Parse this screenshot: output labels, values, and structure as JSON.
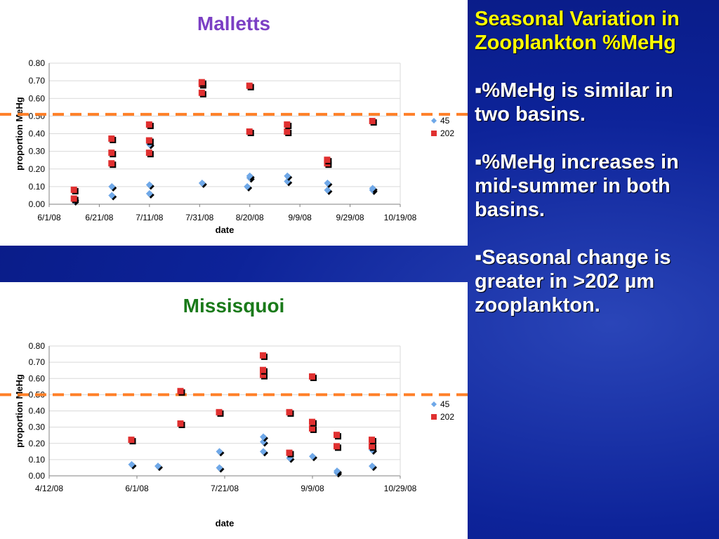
{
  "slide": {
    "heading": "Seasonal Variation in Zooplankton %MeHg",
    "bullets": [
      "▪%MeHg is similar in two basins.",
      "▪%MeHg increases in  mid-summer in both basins.",
      "▪Seasonal change is greater in >202 µm zooplankton."
    ],
    "colors": {
      "background": "#0d2399",
      "heading": "#ffff00",
      "text": "#ffffff"
    }
  },
  "chart_data": [
    {
      "type": "scatter",
      "title": "Malletts",
      "title_color": "#7b3fc4",
      "xlabel": "date",
      "ylabel": "proportion MeHg",
      "ylim": [
        0,
        0.8
      ],
      "xlim": [
        "2008-06-01",
        "2008-10-19"
      ],
      "x_ticks": [
        "6/1/08",
        "6/21/08",
        "7/11/08",
        "7/31/08",
        "8/20/08",
        "9/9/08",
        "9/29/08",
        "10/19/08"
      ],
      "y_ticks": [
        "0.00",
        "0.10",
        "0.20",
        "0.30",
        "0.40",
        "0.50",
        "0.60",
        "0.70",
        "0.80"
      ],
      "reference_line": {
        "y": 0.51,
        "color": "#ff7f27",
        "style": "dashed"
      },
      "legend": "right",
      "grid": true,
      "series": [
        {
          "name": "45",
          "color": "#6fa8e8",
          "marker": "diamond",
          "points": [
            [
              "2008-06-11",
              0.02
            ],
            [
              "2008-06-11",
              0.03
            ],
            [
              "2008-06-26",
              0.05
            ],
            [
              "2008-06-26",
              0.1
            ],
            [
              "2008-07-11",
              0.06
            ],
            [
              "2008-07-11",
              0.11
            ],
            [
              "2008-07-11",
              0.34
            ],
            [
              "2008-08-01",
              0.12
            ],
            [
              "2008-08-19",
              0.1
            ],
            [
              "2008-08-20",
              0.15
            ],
            [
              "2008-08-20",
              0.16
            ],
            [
              "2008-09-04",
              0.13
            ],
            [
              "2008-09-04",
              0.16
            ],
            [
              "2008-09-20",
              0.08
            ],
            [
              "2008-09-20",
              0.12
            ],
            [
              "2008-10-08",
              0.08
            ],
            [
              "2008-10-08",
              0.09
            ]
          ]
        },
        {
          "name": "202",
          "color": "#e03030",
          "marker": "square",
          "points": [
            [
              "2008-06-11",
              0.03
            ],
            [
              "2008-06-11",
              0.08
            ],
            [
              "2008-06-26",
              0.23
            ],
            [
              "2008-06-26",
              0.29
            ],
            [
              "2008-06-26",
              0.37
            ],
            [
              "2008-07-11",
              0.29
            ],
            [
              "2008-07-11",
              0.36
            ],
            [
              "2008-07-11",
              0.45
            ],
            [
              "2008-08-01",
              0.63
            ],
            [
              "2008-08-01",
              0.68
            ],
            [
              "2008-08-01",
              0.69
            ],
            [
              "2008-08-20",
              0.41
            ],
            [
              "2008-08-20",
              0.67
            ],
            [
              "2008-09-04",
              0.41
            ],
            [
              "2008-09-04",
              0.45
            ],
            [
              "2008-09-20",
              0.23
            ],
            [
              "2008-09-20",
              0.25
            ],
            [
              "2008-10-08",
              0.47
            ]
          ]
        }
      ]
    },
    {
      "type": "scatter",
      "title": "Missisquoi",
      "title_color": "#1a7a1a",
      "xlabel": "date",
      "ylabel": "proportion MeHg",
      "ylim": [
        0,
        0.8
      ],
      "xlim": [
        "2008-04-12",
        "2008-10-29"
      ],
      "x_ticks": [
        "4/12/08",
        "6/1/08",
        "7/21/08",
        "9/9/08",
        "10/29/08"
      ],
      "y_ticks": [
        "0.00",
        "0.10",
        "0.20",
        "0.30",
        "0.40",
        "0.50",
        "0.60",
        "0.70",
        "0.80"
      ],
      "reference_line": {
        "y": 0.5,
        "color": "#ff7f27",
        "style": "dashed"
      },
      "legend": "right",
      "grid": true,
      "series": [
        {
          "name": "45",
          "color": "#6fa8e8",
          "marker": "diamond",
          "points": [
            [
              "2008-05-29",
              0.07
            ],
            [
              "2008-06-13",
              0.06
            ],
            [
              "2008-07-18",
              0.05
            ],
            [
              "2008-07-18",
              0.15
            ],
            [
              "2008-08-12",
              0.15
            ],
            [
              "2008-08-12",
              0.21
            ],
            [
              "2008-08-12",
              0.24
            ],
            [
              "2008-08-27",
              0.11
            ],
            [
              "2008-09-09",
              0.12
            ],
            [
              "2008-09-23",
              0.02
            ],
            [
              "2008-09-23",
              0.03
            ],
            [
              "2008-10-13",
              0.06
            ],
            [
              "2008-10-13",
              0.16
            ]
          ]
        },
        {
          "name": "202",
          "color": "#e03030",
          "marker": "square",
          "points": [
            [
              "2008-05-29",
              0.22
            ],
            [
              "2008-06-26",
              0.32
            ],
            [
              "2008-06-26",
              0.52
            ],
            [
              "2008-07-18",
              0.39
            ],
            [
              "2008-08-12",
              0.62
            ],
            [
              "2008-08-12",
              0.65
            ],
            [
              "2008-08-12",
              0.74
            ],
            [
              "2008-08-27",
              0.14
            ],
            [
              "2008-08-27",
              0.39
            ],
            [
              "2008-09-09",
              0.29
            ],
            [
              "2008-09-09",
              0.33
            ],
            [
              "2008-09-09",
              0.61
            ],
            [
              "2008-09-23",
              0.18
            ],
            [
              "2008-09-23",
              0.25
            ],
            [
              "2008-10-13",
              0.18
            ],
            [
              "2008-10-13",
              0.22
            ]
          ]
        }
      ]
    }
  ]
}
